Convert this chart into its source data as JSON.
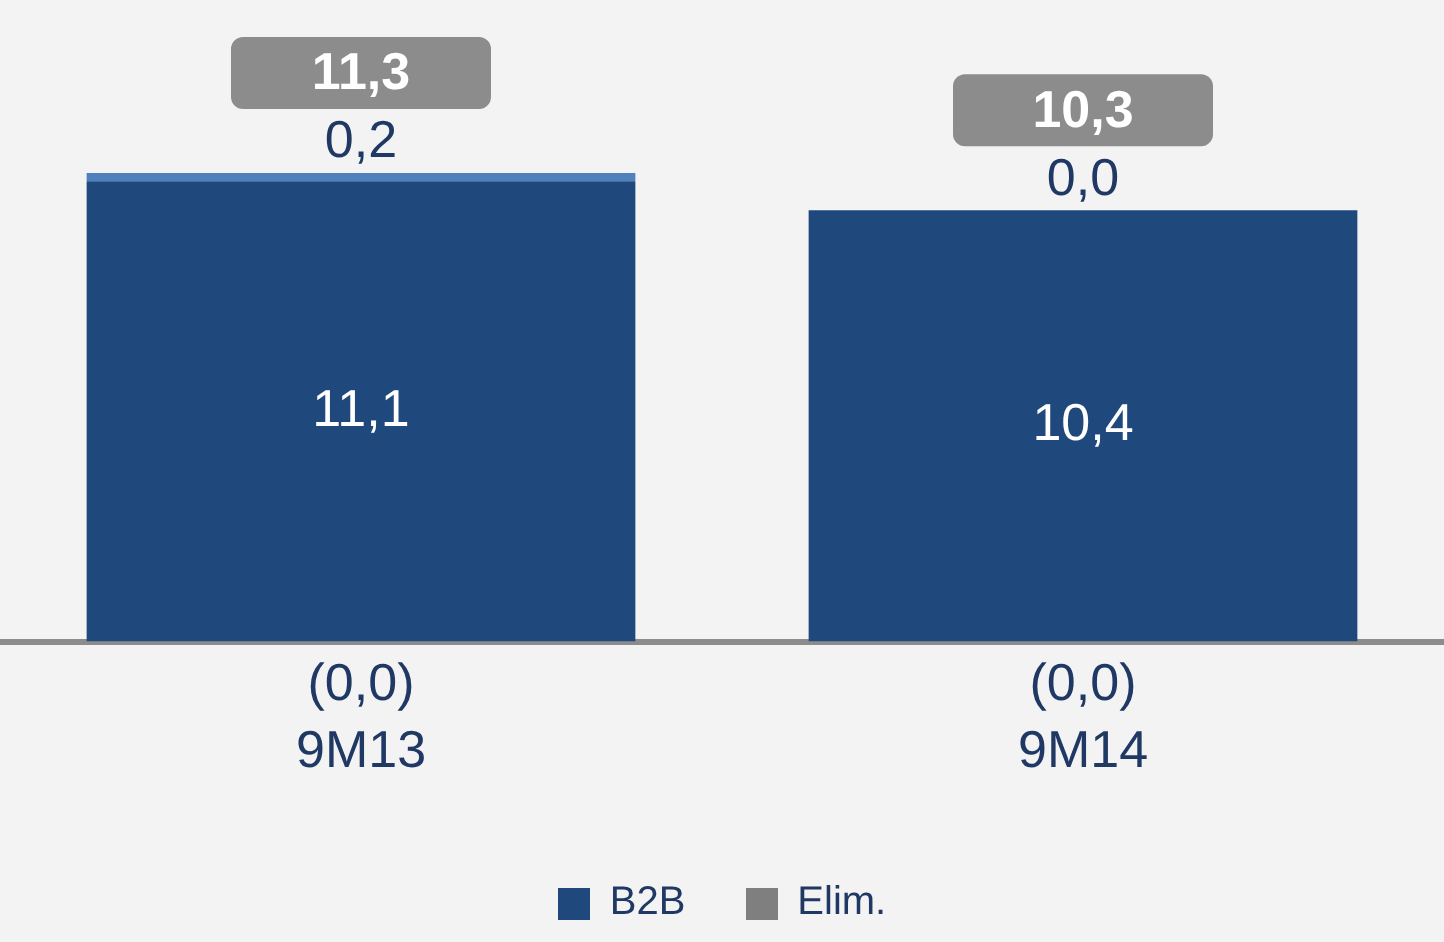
{
  "chart_data": {
    "type": "bar",
    "stacked": true,
    "categories": [
      "9M13",
      "9M14"
    ],
    "series": [
      {
        "name": "B2B",
        "color": "#1f497d",
        "values": [
          11.1,
          10.4
        ],
        "value_labels": [
          "11,1",
          "10,4"
        ]
      },
      {
        "color": "#4f81bd",
        "values": [
          0.2,
          0.0
        ],
        "value_labels": [
          "0,2",
          "0,0"
        ]
      },
      {
        "name": "Elim.",
        "color": "#7f7f7f",
        "values": [
          0.0,
          0.0
        ],
        "value_labels": [
          "(0,0)",
          "(0,0)"
        ]
      }
    ],
    "totals": [
      "11,3",
      "10,3"
    ],
    "legend": "bottom",
    "grid": false
  }
}
